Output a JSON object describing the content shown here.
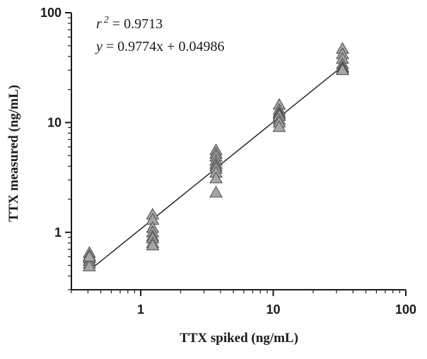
{
  "chart_data": {
    "type": "scatter",
    "title": "",
    "xlabel": "TTX spiked (ng/mL)",
    "ylabel": "TTX measured (ng/mL)",
    "xscale": "log",
    "yscale": "log",
    "xlim": [
      0.3,
      100
    ],
    "ylim": [
      0.3,
      100
    ],
    "xticks": [
      "1",
      "10",
      "100"
    ],
    "yticks": [
      "1",
      "10",
      "100"
    ],
    "grid": false,
    "legend": "none",
    "marker": "triangle",
    "marker_color": "#a6a6a6",
    "annotations": {
      "r2_label": "r",
      "r2_exp": "2",
      "r2_value": " = 0.9713",
      "eq_y": "y",
      "eq_rest": " = 0.9774x + 0.04986"
    },
    "fit": {
      "slope": 0.9774,
      "intercept": 0.04986,
      "x_range": [
        0.41,
        33.3
      ]
    },
    "series": [
      {
        "x": [
          0.41,
          0.41,
          0.41,
          0.41,
          0.41,
          0.41,
          0.41,
          1.23,
          1.23,
          1.23,
          1.23,
          1.23,
          1.23,
          1.23,
          1.23,
          3.7,
          3.7,
          3.7,
          3.7,
          3.7,
          3.7,
          3.7,
          3.7,
          3.7,
          3.7,
          11.1,
          11.1,
          11.1,
          11.1,
          11.1,
          11.1,
          11.1,
          11.1,
          33.3,
          33.3,
          33.3,
          33.3,
          33.3,
          33.3,
          33.3
        ],
        "y": [
          0.65,
          0.61,
          0.58,
          0.55,
          0.52,
          0.49,
          0.6,
          1.45,
          1.3,
          1.1,
          1.0,
          0.92,
          0.88,
          0.8,
          0.76,
          5.6,
          5.2,
          4.9,
          4.5,
          4.2,
          4.0,
          3.8,
          3.5,
          3.1,
          2.3,
          14.5,
          13.0,
          12.3,
          11.9,
          11.5,
          10.6,
          10.0,
          9.1,
          47,
          42,
          38,
          34,
          32,
          31,
          30
        ]
      }
    ]
  }
}
